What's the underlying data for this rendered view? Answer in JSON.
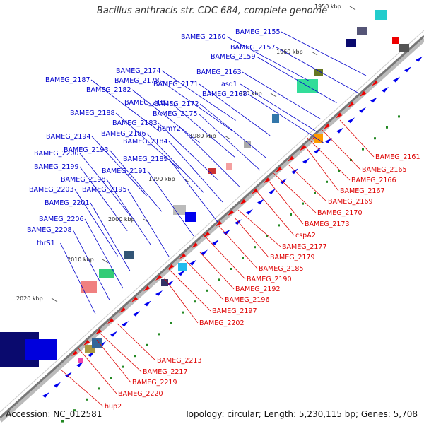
{
  "title": "Bacillus anthracis str. CDC 684, complete genome",
  "footer": {
    "accession": "Accession: NC_012581",
    "summary": "Topology: circular; Length: 5,230,115 bp; Genes: 5,708"
  },
  "colors": {
    "forward_label": "#0000cc",
    "reverse_label": "#dd0000",
    "forward_gene": "#0000ee",
    "reverse_gene": "#ee0000",
    "backbone": "#777777"
  },
  "ticks": [
    "1950 kbp",
    "1960 kbp",
    "1970 kbp",
    "1980 kbp",
    "1990 kbp",
    "2000 kbp",
    "2010 kbp",
    "2020 kbp"
  ],
  "forward_genes": [
    "BAMEG_2155",
    "BAMEG_2160",
    "BAMEG_2157",
    "BAMEG_2159",
    "BAMEG_2163",
    "asd1",
    "BAMEG_2168",
    "BAMEG_2174",
    "BAMEG_2178",
    "BAMEG_2171",
    "BAMEG_2187",
    "BAMEG_2182",
    "BAMEG_2172",
    "BAMEG_2181",
    "BAMEG_2188",
    "BAMEG_2175",
    "BAMEG_2183",
    "hemY2",
    "BAMEG_2186",
    "BAMEG_2194",
    "BAMEG_2184",
    "BAMEG_2193",
    "BAMEG_2200",
    "BAMEG_2189",
    "BAMEG_2199",
    "BAMEG_2191",
    "BAMEG_2198",
    "BAMEG_2203",
    "BAMEG_2195",
    "BAMEG_2201",
    "BAMEG_2206",
    "BAMEG_2208",
    "thrS1"
  ],
  "reverse_genes": [
    "BAMEG_2161",
    "BAMEG_2165",
    "BAMEG_2166",
    "BAMEG_2167",
    "BAMEG_2169",
    "BAMEG_2170",
    "BAMEG_2173",
    "cspA2",
    "BAMEG_2177",
    "BAMEG_2179",
    "BAMEG_2185",
    "BAMEG_2190",
    "BAMEG_2192",
    "BAMEG_2196",
    "BAMEG_2197",
    "BAMEG_2202",
    "BAMEG_2213",
    "BAMEG_2217",
    "BAMEG_2219",
    "BAMEG_2220",
    "hup2"
  ]
}
